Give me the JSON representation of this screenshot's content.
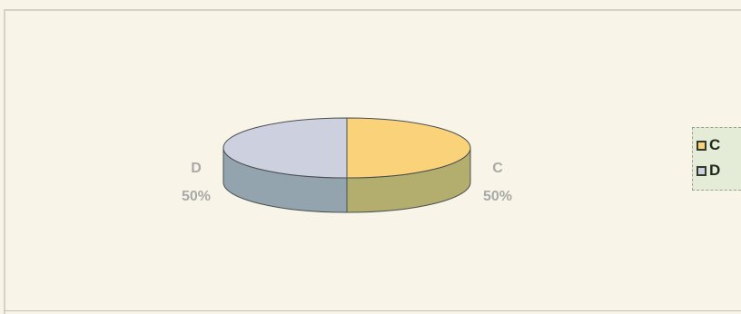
{
  "chart_data": {
    "type": "pie",
    "style": "3d",
    "title": "",
    "slices": [
      {
        "label": "C",
        "value": 50,
        "percent_label": "50%",
        "top_color": "#f9d27a",
        "side_color": "#b3ae6e"
      },
      {
        "label": "D",
        "value": 50,
        "percent_label": "50%",
        "top_color": "#cdd0de",
        "side_color": "#93a4ae"
      }
    ],
    "legend": {
      "placement": "right",
      "entries": [
        "C",
        "D"
      ]
    }
  }
}
